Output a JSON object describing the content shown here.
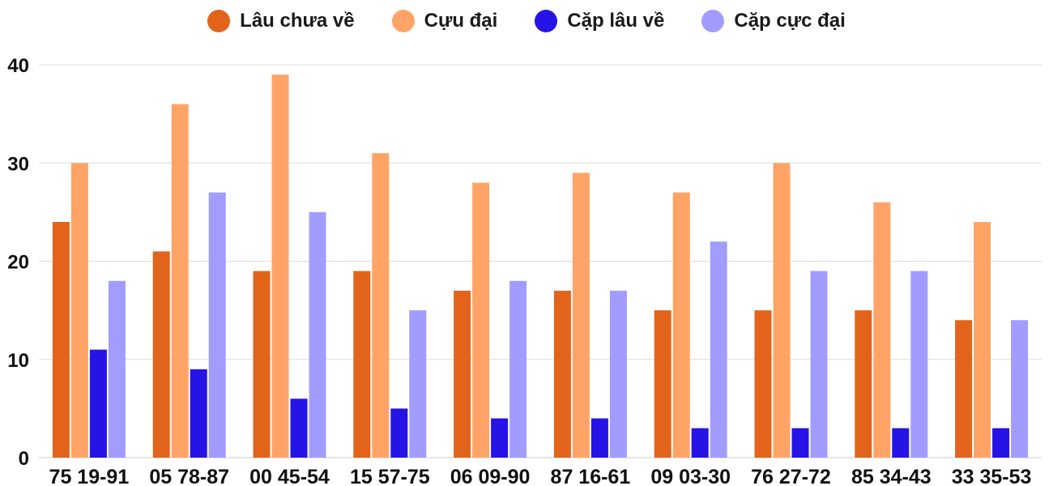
{
  "chart_data": {
    "type": "bar",
    "categories": [
      "75 19-91",
      "05 78-87",
      "00 45-54",
      "15 57-75",
      "06 09-90",
      "87 16-61",
      "09 03-30",
      "76 27-72",
      "85 34-43",
      "33 35-53"
    ],
    "series": [
      {
        "name": "Lâu chưa về",
        "color": "#e2641b",
        "values": [
          24,
          21,
          19,
          19,
          17,
          17,
          15,
          15,
          15,
          14
        ]
      },
      {
        "name": "Cựu đại",
        "color": "#ffa466",
        "values": [
          30,
          36,
          39,
          31,
          28,
          29,
          27,
          30,
          26,
          24
        ]
      },
      {
        "name": "Cặp lâu về",
        "color": "#2613e5",
        "values": [
          11,
          9,
          6,
          5,
          4,
          4,
          3,
          3,
          3,
          3
        ]
      },
      {
        "name": "Cặp cực đại",
        "color": "#a39cff",
        "values": [
          18,
          27,
          25,
          15,
          18,
          17,
          22,
          19,
          19,
          14
        ]
      }
    ],
    "yticks": [
      0,
      10,
      20,
      30,
      40
    ],
    "ylim": [
      0,
      40
    ],
    "grid": true,
    "legend_position": "top-center"
  }
}
